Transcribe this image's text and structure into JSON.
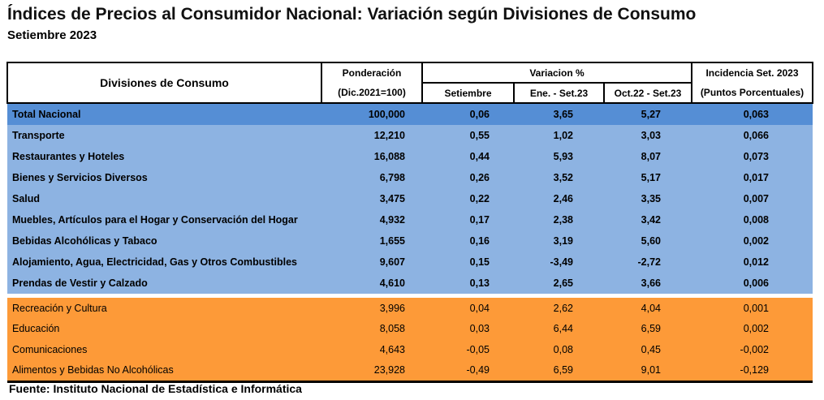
{
  "title": "Índices de Precios al Consumidor Nacional: Variación según Divisiones de Consumo",
  "subtitle": "Setiembre 2023",
  "headers": {
    "division": "Divisiones de Consumo",
    "ponderacion": "Ponderación",
    "ponderacion_sub": "(Dic.2021=100)",
    "variacion": "Variacion %",
    "setiembre": "Setiembre",
    "ene_set": "Ene. - Set.23",
    "oct_set": "Oct.22 - Set.23",
    "incidencia": "Incidencia Set. 2023",
    "incidencia_sub": "(Puntos Porcentuales)"
  },
  "total": {
    "name": "Total Nacional",
    "pond": "100,000",
    "set": "0,06",
    "ene": "3,65",
    "oct": "5,27",
    "inc": "0,063"
  },
  "blue_rows": [
    {
      "name": "Transporte",
      "pond": "12,210",
      "set": "0,55",
      "ene": "1,02",
      "oct": "3,03",
      "inc": "0,066"
    },
    {
      "name": "Restaurantes y Hoteles",
      "pond": "16,088",
      "set": "0,44",
      "ene": "5,93",
      "oct": "8,07",
      "inc": "0,073"
    },
    {
      "name": "Bienes y Servicios Diversos",
      "pond": "6,798",
      "set": "0,26",
      "ene": "3,52",
      "oct": "5,17",
      "inc": "0,017"
    },
    {
      "name": "Salud",
      "pond": "3,475",
      "set": "0,22",
      "ene": "2,46",
      "oct": "3,35",
      "inc": "0,007"
    },
    {
      "name": "Muebles, Artículos para el Hogar y Conservación del Hogar",
      "pond": "4,932",
      "set": "0,17",
      "ene": "2,38",
      "oct": "3,42",
      "inc": "0,008"
    },
    {
      "name": "Bebidas Alcohólicas y Tabaco",
      "pond": "1,655",
      "set": "0,16",
      "ene": "3,19",
      "oct": "5,60",
      "inc": "0,002"
    },
    {
      "name": "Alojamiento, Agua, Electricidad, Gas y Otros Combustibles",
      "pond": "9,607",
      "set": "0,15",
      "ene": "-3,49",
      "oct": "-2,72",
      "inc": "0,012"
    },
    {
      "name": "Prendas de Vestir y Calzado",
      "pond": "4,610",
      "set": "0,13",
      "ene": "2,65",
      "oct": "3,66",
      "inc": "0,006"
    }
  ],
  "orange_rows": [
    {
      "name": "Recreación y Cultura",
      "pond": "3,996",
      "set": "0,04",
      "ene": "2,62",
      "oct": "4,04",
      "inc": "0,001"
    },
    {
      "name": "Educación",
      "pond": "8,058",
      "set": "0,03",
      "ene": "6,44",
      "oct": "6,59",
      "inc": "0,002"
    },
    {
      "name": "Comunicaciones",
      "pond": "4,643",
      "set": "-0,05",
      "ene": "0,08",
      "oct": "0,45",
      "inc": "-0,002"
    },
    {
      "name": "Alimentos y Bebidas No Alcohólicas",
      "pond": "23,928",
      "set": "-0,49",
      "ene": "6,59",
      "oct": "9,01",
      "inc": "-0,129"
    }
  ],
  "footer": "Fuente: Instituto Nacional de Estadística e Informática"
}
